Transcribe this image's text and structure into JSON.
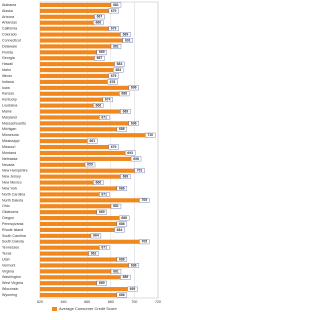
{
  "chart_data": {
    "type": "bar",
    "orientation": "horizontal",
    "categories": [
      "Alabama",
      "Alaska",
      "Arizona",
      "Arkansas",
      "California",
      "Colorado",
      "Connecticut",
      "Delaware",
      "Florida",
      "Georgia",
      "Hawaii",
      "Idaho",
      "Illinois",
      "Indiana",
      "Iowa",
      "Kansas",
      "Kentucky",
      "Louisiana",
      "Maine",
      "Maryland",
      "Massachusetts",
      "Michigan",
      "Minnesota",
      "Mississippi",
      "Missouri",
      "Montana",
      "Nebraska",
      "Nevada",
      "New Hampshire",
      "New Jersey",
      "New Mexico",
      "New York",
      "North Carolina",
      "North Dakota",
      "Ohio",
      "Oklahoma",
      "Oregon",
      "Pennsylvania",
      "Rhode Island",
      "South Carolina",
      "South Dakota",
      "Tennessee",
      "Texas",
      "Utah",
      "Vermont",
      "Virginia",
      "Washington",
      "West Virginia",
      "Wisconsin",
      "Wyoming"
    ],
    "series": [
      {
        "name": "Average Consumer Credit Score",
        "color": "#f0881e",
        "values": [
          681,
          679,
          667,
          666,
          679,
          689,
          691,
          681,
          669,
          667,
          684,
          683,
          679,
          678,
          696,
          688,
          674,
          666,
          689,
          671,
          696,
          686,
          710,
          661,
          679,
          693,
          698,
          659,
          701,
          689,
          666,
          686,
          671,
          705,
          681,
          669,
          688,
          686,
          684,
          664,
          705,
          671,
          662,
          686,
          696,
          681,
          689,
          669,
          695,
          686
        ]
      }
    ],
    "xlim": [
      620,
      720
    ],
    "xticks": [
      620,
      640,
      660,
      680,
      700,
      720
    ],
    "grid": true,
    "legend": "bottom"
  }
}
